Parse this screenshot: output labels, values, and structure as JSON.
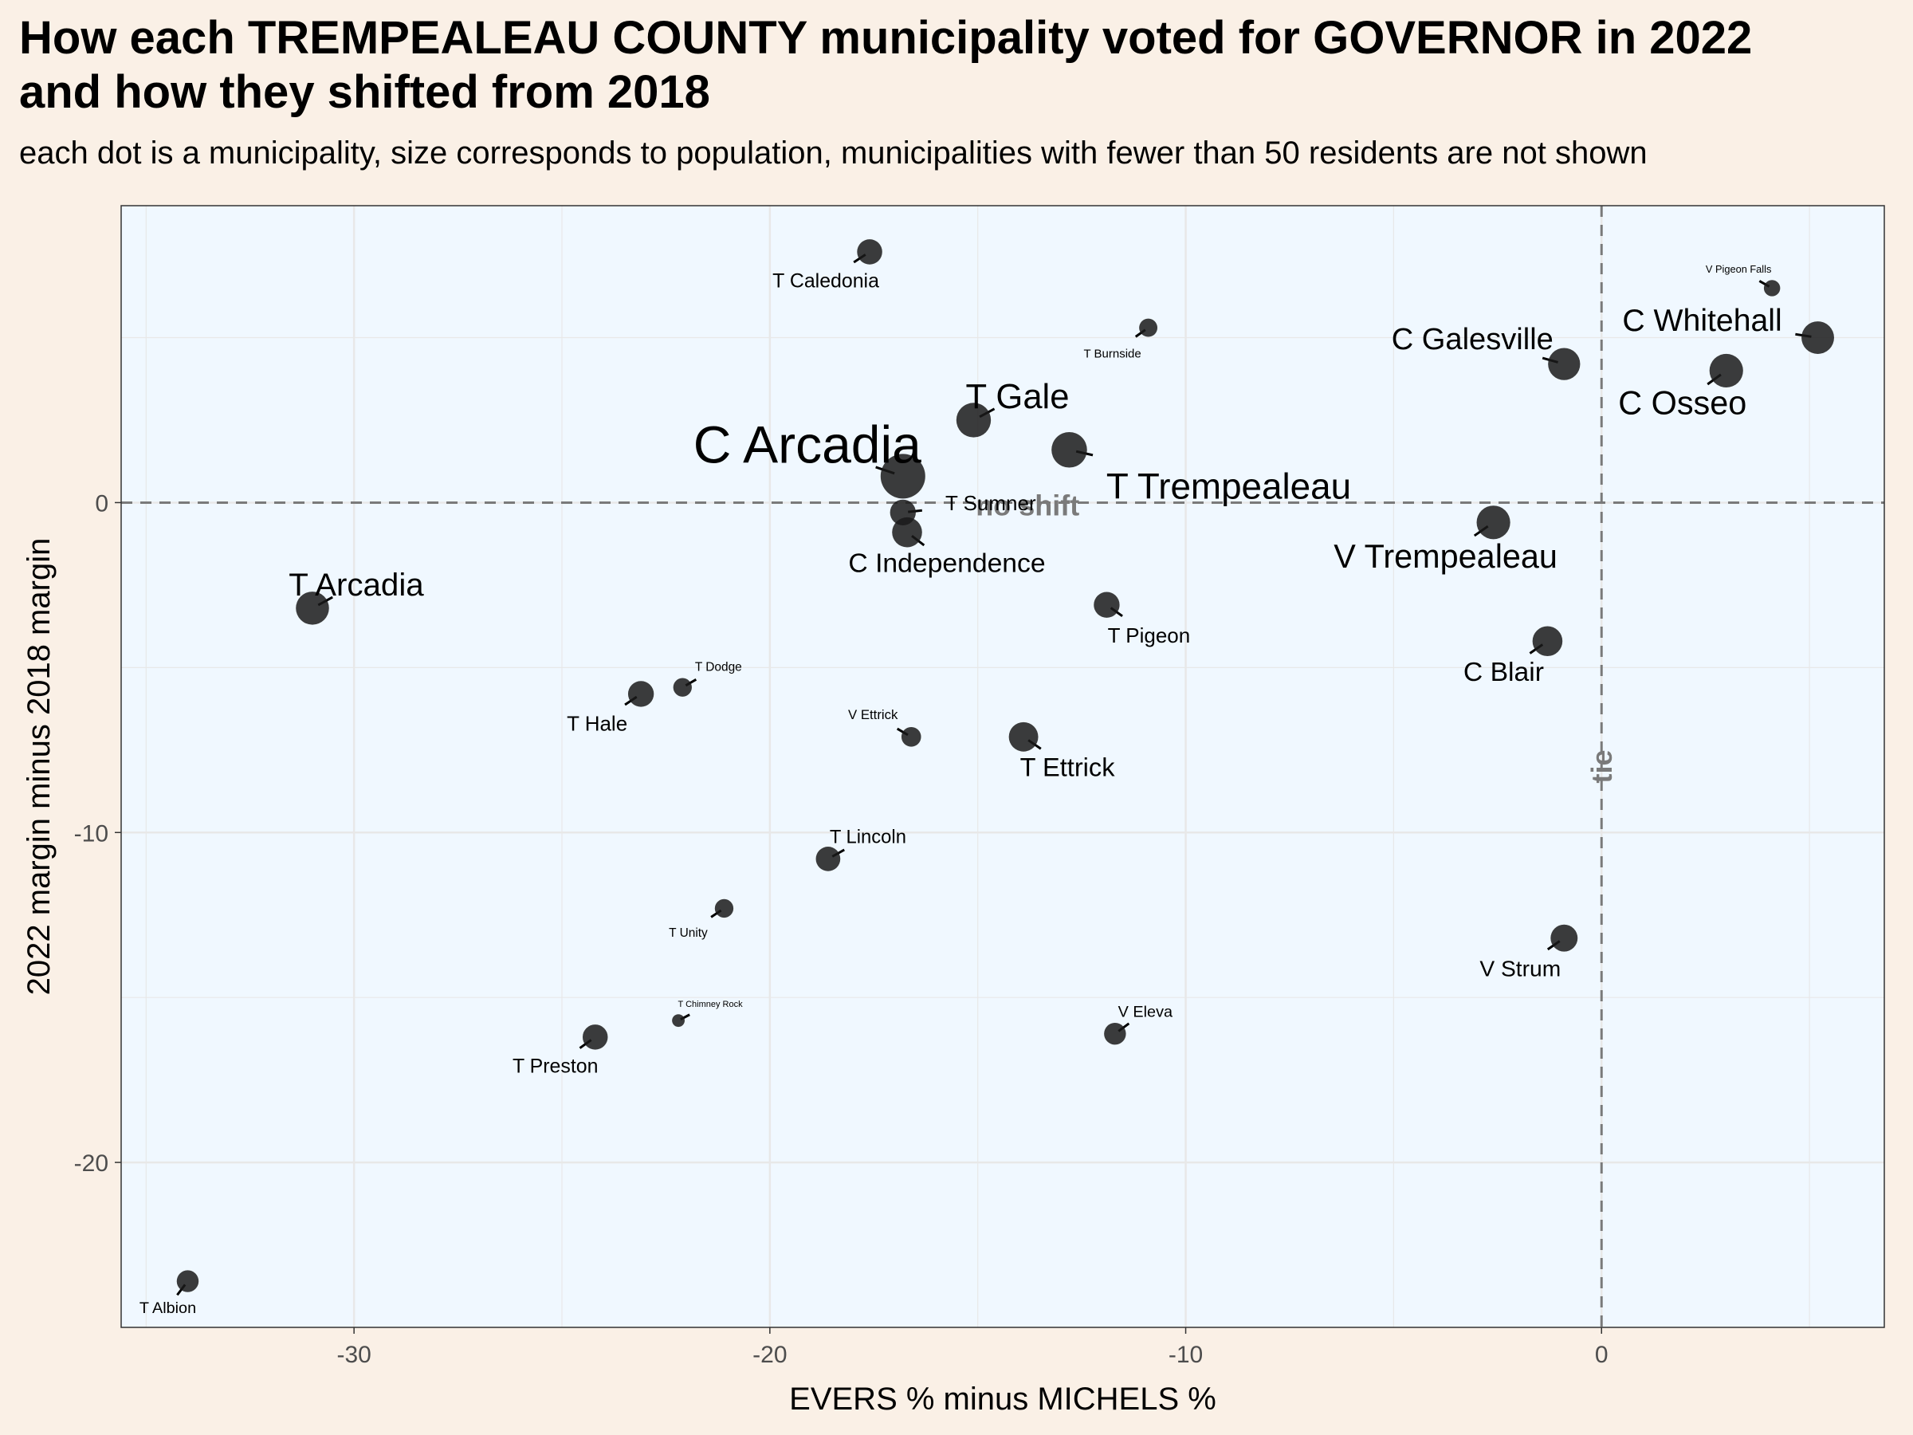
{
  "title_line1": "How each TREMPEALEAU COUNTY municipality voted for GOVERNOR in 2022",
  "title_line2": "and how they shifted from 2018",
  "subtitle": "each dot is a municipality, size corresponds to population, municipalities with fewer than 50 residents are not shown",
  "colors": {
    "page_background": "#faf0e6",
    "panel_background": "#f0f8ff",
    "point": "#1a1a1a",
    "reference_line": "#7a7a7a",
    "grid": "#e8e8e8"
  },
  "chart_data": {
    "type": "scatter",
    "xlabel": "EVERS % minus MICHELS %",
    "ylabel": "2022 margin minus 2018 margin",
    "xlim": [
      -35.6,
      6.8
    ],
    "ylim": [
      -25.0,
      9.0
    ],
    "x_ticks": [
      -30,
      -20,
      -10,
      0
    ],
    "y_ticks": [
      -20,
      -10,
      0
    ],
    "grid": true,
    "reference_lines": [
      {
        "axis": "y",
        "value": 0,
        "label": "no shift"
      },
      {
        "axis": "x",
        "value": 0,
        "label": "tie"
      }
    ],
    "points": [
      {
        "name": "C Arcadia",
        "x": -16.8,
        "y": 0.8,
        "population": 3000
      },
      {
        "name": "T Trempealeau",
        "x": -12.8,
        "y": 1.6,
        "population": 1900
      },
      {
        "name": "V Trempealeau",
        "x": -2.6,
        "y": -0.6,
        "population": 1700
      },
      {
        "name": "T Gale",
        "x": -15.1,
        "y": 2.5,
        "population": 1800
      },
      {
        "name": "C Galesville",
        "x": -0.9,
        "y": 4.2,
        "population": 1550
      },
      {
        "name": "C Whitehall",
        "x": 5.2,
        "y": 5.0,
        "population": 1600
      },
      {
        "name": "C Osseo",
        "x": 3.0,
        "y": 4.0,
        "population": 1700
      },
      {
        "name": "T Arcadia",
        "x": -31.0,
        "y": -3.2,
        "population": 1650
      },
      {
        "name": "C Independence",
        "x": -16.7,
        "y": -0.9,
        "population": 1350
      },
      {
        "name": "T Sumner",
        "x": -16.8,
        "y": -0.3,
        "population": 1000
      },
      {
        "name": "T Pigeon",
        "x": -11.9,
        "y": -3.1,
        "population": 1000
      },
      {
        "name": "C Blair",
        "x": -1.3,
        "y": -4.2,
        "population": 1350
      },
      {
        "name": "T Ettrick",
        "x": -13.9,
        "y": -7.1,
        "population": 1300
      },
      {
        "name": "T Hale",
        "x": -23.1,
        "y": -5.8,
        "population": 1000
      },
      {
        "name": "T Caledonia",
        "x": -17.6,
        "y": 7.6,
        "population": 950
      },
      {
        "name": "T Burnside",
        "x": -10.9,
        "y": 5.3,
        "population": 500
      },
      {
        "name": "V Pigeon Falls",
        "x": 4.1,
        "y": 6.5,
        "population": 400
      },
      {
        "name": "T Dodge",
        "x": -22.1,
        "y": -5.6,
        "population": 520
      },
      {
        "name": "V Ettrick",
        "x": -16.6,
        "y": -7.1,
        "population": 580
      },
      {
        "name": "T Lincoln",
        "x": -18.6,
        "y": -10.8,
        "population": 900
      },
      {
        "name": "T Unity",
        "x": -21.1,
        "y": -12.3,
        "population": 520
      },
      {
        "name": "V Strum",
        "x": -0.9,
        "y": -13.2,
        "population": 1100
      },
      {
        "name": "V Eleva",
        "x": -11.7,
        "y": -16.1,
        "population": 720
      },
      {
        "name": "T Chimney Rock",
        "x": -22.2,
        "y": -15.7,
        "population": 240
      },
      {
        "name": "T Preston",
        "x": -24.2,
        "y": -16.2,
        "population": 950
      },
      {
        "name": "T Albion",
        "x": -34.0,
        "y": -23.6,
        "population": 720
      }
    ]
  }
}
